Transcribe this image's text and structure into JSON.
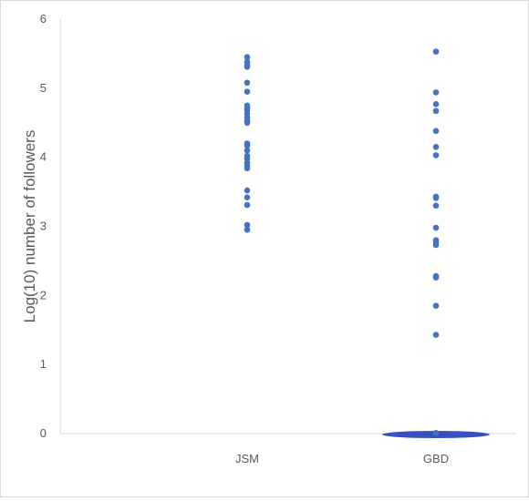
{
  "chart_data": {
    "type": "scatter",
    "title": "",
    "xlabel": "",
    "ylabel": "Log(10) number of followers",
    "categories": [
      "JSM",
      "GBD"
    ],
    "ylim": [
      0,
      6
    ],
    "yticks": [
      0,
      1,
      2,
      3,
      4,
      5,
      6
    ],
    "grid": false,
    "legend": "none",
    "marker_color": "#4472C4",
    "zero_cluster_color": "#3A4FC2",
    "series": [
      {
        "category": "JSM",
        "values": [
          5.45,
          5.38,
          5.33,
          5.31,
          5.08,
          4.95,
          4.75,
          4.71,
          4.68,
          4.63,
          4.58,
          4.53,
          4.5,
          4.2,
          4.17,
          4.1,
          4.02,
          3.98,
          3.92,
          3.88,
          3.84,
          3.52,
          3.42,
          3.31,
          3.02,
          2.95
        ]
      },
      {
        "category": "GBD",
        "values": [
          5.53,
          4.94,
          4.77,
          4.67,
          4.38,
          4.15,
          4.03,
          3.43,
          3.41,
          3.3,
          2.98,
          2.8,
          2.77,
          2.73,
          2.28,
          2.26,
          1.85,
          1.43,
          0.01
        ],
        "zero_cluster": true
      }
    ]
  }
}
